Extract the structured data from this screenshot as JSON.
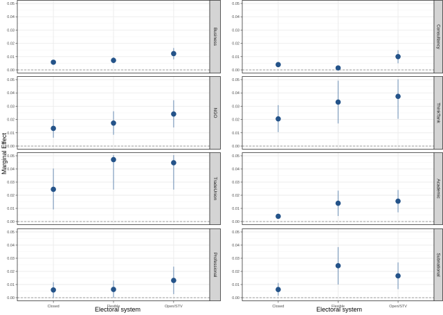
{
  "chart_data": {
    "type": "scatter",
    "subtype": "point-range facet grid",
    "title": "",
    "xlabel": "Electoral system",
    "ylabel": "Marginal Effect",
    "categories": [
      "Closed",
      "Flexible",
      "Open/STV"
    ],
    "ylim": [
      0,
      0.05
    ],
    "yticks": [
      "0.00",
      "0.01",
      "0.02",
      "0.03",
      "0.04",
      "0.05"
    ],
    "reference_line": {
      "y": 0,
      "style": "dashed"
    },
    "grid": true,
    "layout": {
      "columns": 2,
      "rows": 4
    },
    "colors": {
      "point": "#245389",
      "error_bar": "#7f9cbd",
      "strip_bg": "#d4d4d4",
      "grid": "#ebebeb",
      "zero_line": "#9a9a9a"
    },
    "panels": [
      {
        "label": "Business",
        "col": 0,
        "row": 0,
        "values": [
          0.0058,
          0.0072,
          0.0123
        ],
        "lower": [
          0.0042,
          0.005,
          0.008
        ],
        "upper": [
          0.0072,
          0.0095,
          0.0165
        ]
      },
      {
        "label": "Consultancy",
        "col": 1,
        "row": 0,
        "values": [
          0.004,
          0.0015,
          0.01
        ],
        "lower": [
          0.0028,
          0.0005,
          0.005
        ],
        "upper": [
          0.0052,
          0.0025,
          0.0148
        ]
      },
      {
        "label": "NGO",
        "col": 0,
        "row": 1,
        "values": [
          0.0133,
          0.0173,
          0.0241
        ],
        "lower": [
          0.0063,
          0.0085,
          0.014
        ],
        "upper": [
          0.0202,
          0.0262,
          0.0345
        ]
      },
      {
        "label": "ThinkTank",
        "col": 1,
        "row": 1,
        "values": [
          0.0205,
          0.0331,
          0.0374
        ],
        "lower": [
          0.0105,
          0.017,
          0.0205
        ],
        "upper": [
          0.0308,
          0.0492,
          0.0502
        ]
      },
      {
        "label": "TradeUnion",
        "col": 0,
        "row": 2,
        "values": [
          0.0245,
          0.0471,
          0.0447
        ],
        "lower": [
          0.0092,
          0.0243,
          0.0243
        ],
        "upper": [
          0.0403,
          0.0505,
          0.0505
        ]
      },
      {
        "label": "Academic",
        "col": 1,
        "row": 2,
        "values": [
          0.004,
          0.0139,
          0.0155
        ],
        "lower": [
          0.0028,
          0.0042,
          0.007
        ],
        "upper": [
          0.0052,
          0.0235,
          0.024
        ]
      },
      {
        "label": "Professional",
        "col": 0,
        "row": 3,
        "values": [
          0.0059,
          0.0063,
          0.0131
        ],
        "lower": [
          0.0,
          0.0,
          0.0027
        ],
        "upper": [
          0.0118,
          0.013,
          0.0236
        ]
      },
      {
        "label": "Subnational",
        "col": 1,
        "row": 3,
        "values": [
          0.0062,
          0.0243,
          0.0166
        ],
        "lower": [
          0.0015,
          0.01,
          0.0065
        ],
        "upper": [
          0.0112,
          0.0385,
          0.0268
        ]
      }
    ]
  }
}
